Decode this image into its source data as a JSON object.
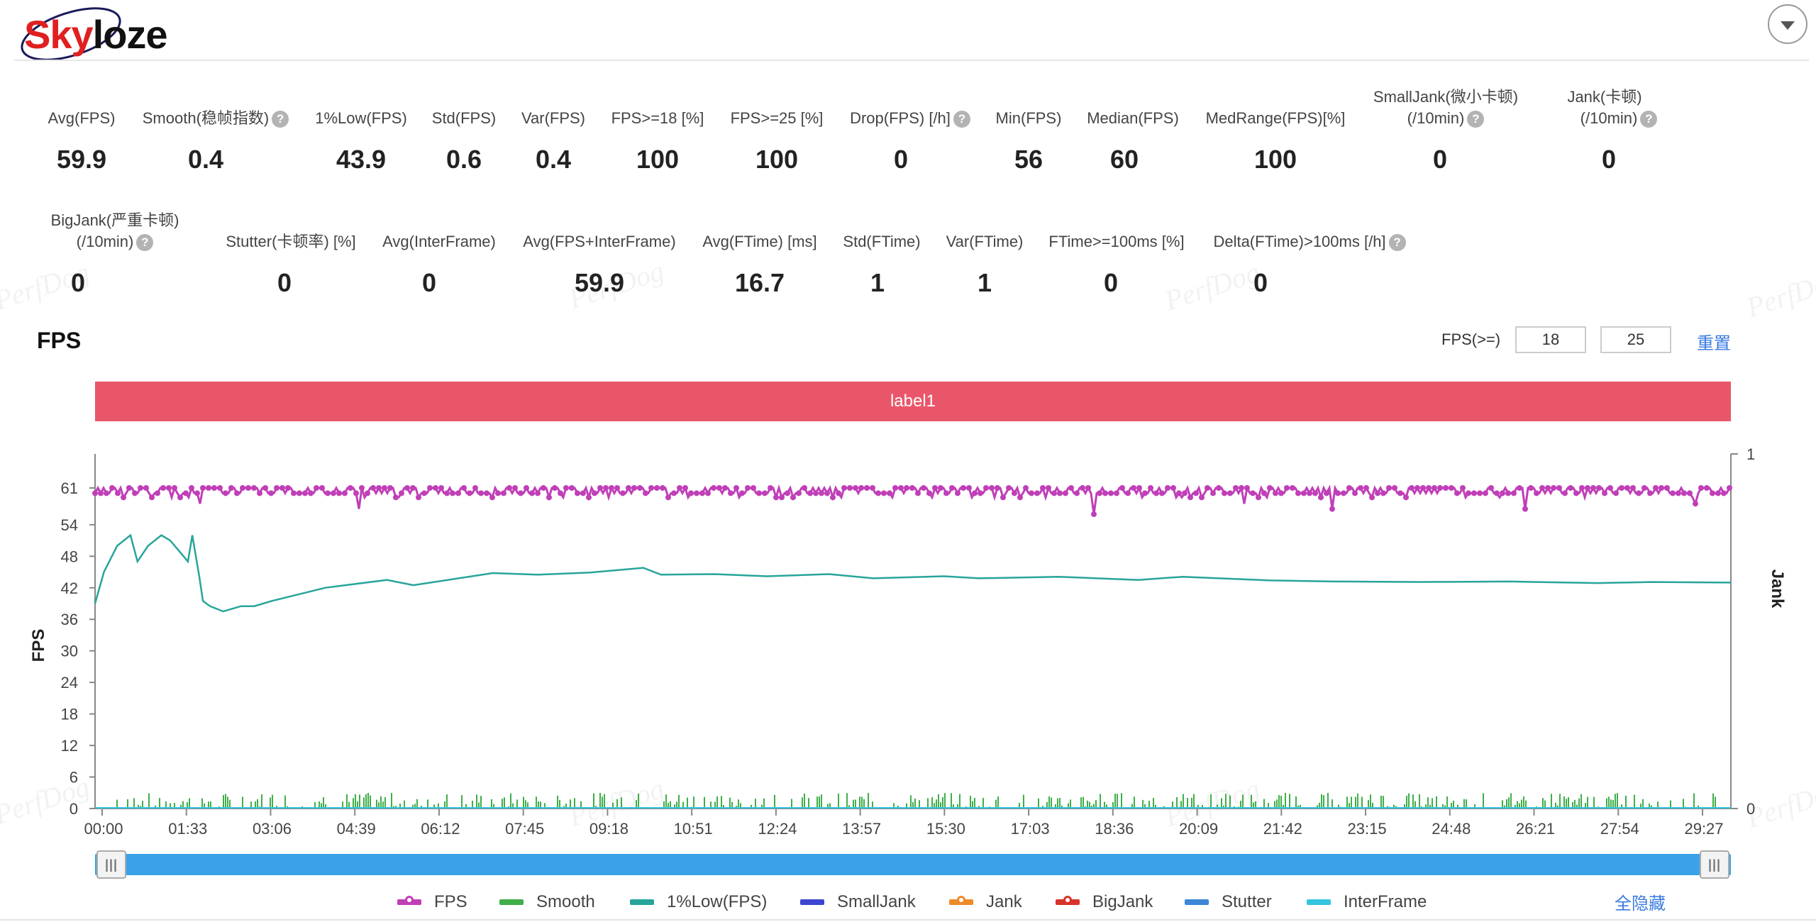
{
  "logo": {
    "part1": "Sky",
    "part2": "loze"
  },
  "metrics_row1": [
    {
      "label": "Avg(FPS)",
      "value": "59.9",
      "help": false
    },
    {
      "label": "Smooth(稳帧指数)",
      "value": "0.4",
      "help": true
    },
    {
      "label": "1%Low(FPS)",
      "value": "43.9",
      "help": false
    },
    {
      "label": "Std(FPS)",
      "value": "0.6",
      "help": false
    },
    {
      "label": "Var(FPS)",
      "value": "0.4",
      "help": false
    },
    {
      "label": "FPS>=18 [%]",
      "value": "100",
      "help": false
    },
    {
      "label": "FPS>=25 [%]",
      "value": "100",
      "help": false
    },
    {
      "label": "Drop(FPS) [/h]",
      "value": "0",
      "help": true
    },
    {
      "label": "Min(FPS)",
      "value": "56",
      "help": false
    },
    {
      "label": "Median(FPS)",
      "value": "60",
      "help": false
    },
    {
      "label": "MedRange(FPS)[%]",
      "value": "100",
      "help": false
    },
    {
      "label": "SmallJank(微小卡顿)",
      "label2": "(/10min)",
      "value": "0",
      "help": true
    },
    {
      "label": "Jank(卡顿)",
      "label2": "(/10min)",
      "value": "0",
      "help": true
    }
  ],
  "metrics_row2": [
    {
      "label": "BigJank(严重卡顿)",
      "label2": "(/10min)",
      "value": "0",
      "help": true
    },
    {
      "label": "Stutter(卡顿率) [%]",
      "value": "0",
      "help": false
    },
    {
      "label": "Avg(InterFrame)",
      "value": "0",
      "help": false
    },
    {
      "label": "Avg(FPS+InterFrame)",
      "value": "59.9",
      "help": false
    },
    {
      "label": "Avg(FTime) [ms]",
      "value": "16.7",
      "help": false
    },
    {
      "label": "Std(FTime)",
      "value": "1",
      "help": false
    },
    {
      "label": "Var(FTime)",
      "value": "1",
      "help": false
    },
    {
      "label": "FTime>=100ms [%]",
      "value": "0",
      "help": false
    },
    {
      "label": "Delta(FTime)>100ms [/h]",
      "value": "0",
      "help": true
    }
  ],
  "help_glyph": "?",
  "section_title": "FPS",
  "threshold": {
    "label": "FPS(>=)",
    "value1": "18",
    "value2": "25",
    "reset_label": "重置"
  },
  "label_bar": "label1",
  "watermark": "PerfDog",
  "chart_data": {
    "type": "line",
    "ylabel": "FPS",
    "ylabel_right": "Jank",
    "yticks": [
      0,
      6,
      12,
      18,
      24,
      30,
      36,
      42,
      48,
      54,
      61
    ],
    "ylim": [
      0,
      61
    ],
    "yticks_right": [
      0,
      1
    ],
    "ylim_right": [
      0,
      1
    ],
    "xticks": [
      "00:00",
      "01:33",
      "03:06",
      "04:39",
      "06:12",
      "07:45",
      "09:18",
      "10:51",
      "12:24",
      "13:57",
      "15:30",
      "17:03",
      "18:36",
      "20:09",
      "21:42",
      "23:15",
      "24:48",
      "26:21",
      "27:54",
      "29:27"
    ],
    "x_range_seconds": [
      0,
      1850
    ],
    "grid": false,
    "series": [
      {
        "name": "FPS",
        "color": "#c03fb8",
        "style": "line-dot",
        "typical": [
          60,
          61
        ],
        "dips": [
          [
            120,
            58
          ],
          [
            300,
            57
          ],
          [
            1130,
            56
          ],
          [
            1300,
            58
          ],
          [
            1400,
            57
          ],
          [
            1620,
            57
          ],
          [
            1810,
            58
          ]
        ]
      },
      {
        "name": "Smooth",
        "color": "#3fae49",
        "style": "bars",
        "range": [
          0,
          3
        ]
      },
      {
        "name": "1%Low(FPS)",
        "color": "#27a59a",
        "style": "line",
        "points": [
          [
            0,
            39
          ],
          [
            10,
            45
          ],
          [
            25,
            50
          ],
          [
            40,
            52
          ],
          [
            48,
            47
          ],
          [
            60,
            50
          ],
          [
            75,
            52
          ],
          [
            85,
            51
          ],
          [
            105,
            47
          ],
          [
            110,
            52
          ],
          [
            118,
            44
          ],
          [
            122,
            39.5
          ],
          [
            130,
            38.5
          ],
          [
            145,
            37.5
          ],
          [
            165,
            38.5
          ],
          [
            180,
            38.5
          ],
          [
            200,
            39.5
          ],
          [
            260,
            42
          ],
          [
            330,
            43.5
          ],
          [
            360,
            42.5
          ],
          [
            450,
            44.8
          ],
          [
            500,
            44.5
          ],
          [
            560,
            44.9
          ],
          [
            620,
            45.8
          ],
          [
            640,
            44.5
          ],
          [
            700,
            44.6
          ],
          [
            760,
            44.2
          ],
          [
            830,
            44.6
          ],
          [
            880,
            43.8
          ],
          [
            960,
            44.2
          ],
          [
            1000,
            43.8
          ],
          [
            1090,
            44.1
          ],
          [
            1180,
            43.5
          ],
          [
            1230,
            44.1
          ],
          [
            1330,
            43.4
          ],
          [
            1400,
            43.2
          ],
          [
            1500,
            43.1
          ],
          [
            1600,
            43.2
          ],
          [
            1700,
            42.9
          ],
          [
            1760,
            43.1
          ],
          [
            1850,
            43.0
          ]
        ]
      },
      {
        "name": "SmallJank",
        "color": "#3d45d1",
        "style": "line",
        "points": [
          [
            0,
            0
          ],
          [
            1850,
            0
          ]
        ]
      },
      {
        "name": "Jank",
        "color": "#ef8a2a",
        "style": "line-dot",
        "points": [
          [
            0,
            0
          ],
          [
            1850,
            0
          ]
        ]
      },
      {
        "name": "BigJank",
        "color": "#d9322a",
        "style": "line-dot",
        "points": [
          [
            0,
            0
          ],
          [
            1850,
            0
          ]
        ]
      },
      {
        "name": "Stutter",
        "color": "#3d86d9",
        "style": "line",
        "points": [
          [
            0,
            0
          ],
          [
            1850,
            0
          ]
        ]
      },
      {
        "name": "InterFrame",
        "color": "#34c4de",
        "style": "line",
        "points": [
          [
            0,
            0
          ],
          [
            1850,
            0
          ]
        ]
      }
    ]
  },
  "legend_hide_all": "全隐藏"
}
